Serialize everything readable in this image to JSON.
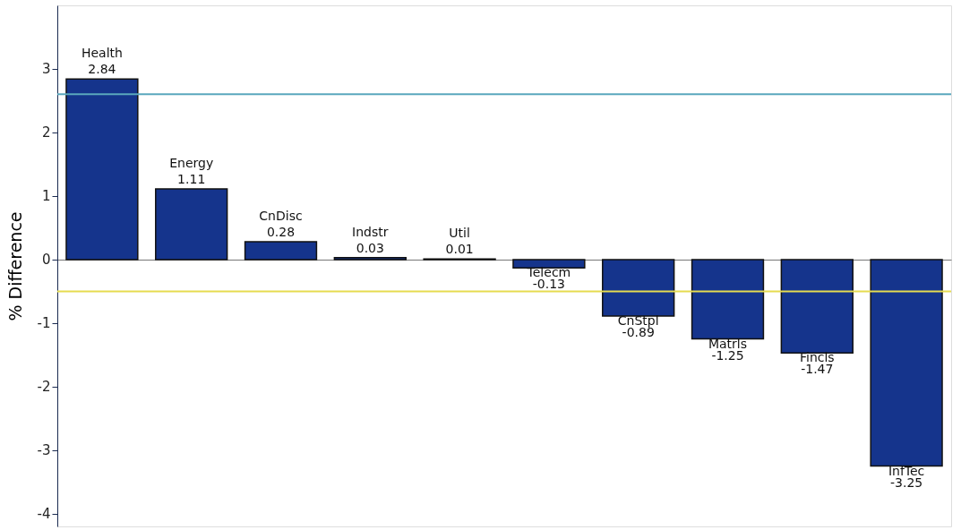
{
  "chart_data": {
    "type": "bar",
    "ylabel": "% Difference",
    "categories": [
      "Health",
      "Energy",
      "CnDisc",
      "Indstr",
      "Util",
      "Telecm",
      "CnStpl",
      "Matrls",
      "Fincls",
      "InfTec"
    ],
    "values": [
      2.84,
      1.11,
      0.28,
      0.03,
      0.01,
      -0.13,
      -0.89,
      -1.25,
      -1.47,
      -3.25
    ],
    "color": "#15348c",
    "ylim": [
      -4.2,
      4
    ],
    "yticks": [
      {
        "value": -4,
        "label": "-4"
      },
      {
        "value": -3,
        "label": "-3"
      },
      {
        "value": -2,
        "label": "-2"
      },
      {
        "value": -1,
        "label": "-1"
      },
      0,
      1,
      2,
      3
    ],
    "data_labels": true,
    "tick_labels": "y",
    "ref_lines": [
      {
        "axis": "y",
        "value": 2.6,
        "color": "#5aa7bd"
      },
      {
        "axis": "y",
        "value": -0.5,
        "color": "#e6dc50"
      }
    ]
  }
}
